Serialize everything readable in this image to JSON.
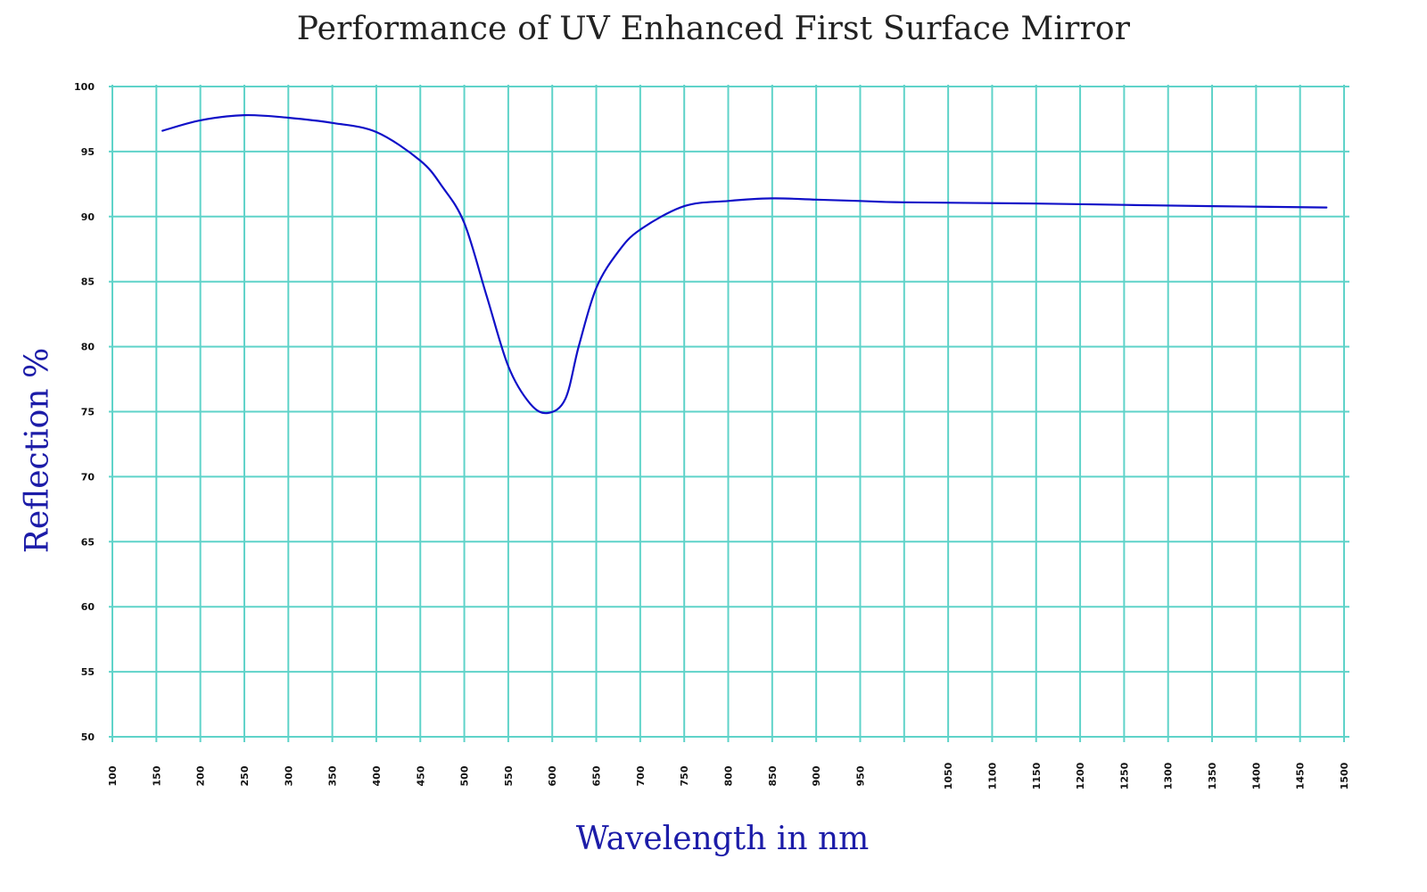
{
  "chart_data": {
    "type": "line",
    "title": "Performance of UV Enhanced First Surface Mirror",
    "xlabel": "Wavelength in nm",
    "ylabel": "Reflection %",
    "xlim": [
      100,
      1500
    ],
    "ylim": [
      50,
      100
    ],
    "grid": true,
    "legend": null,
    "x_tick_labels": [
      "100",
      "150",
      "200",
      "250",
      "300",
      "350",
      "400",
      "450",
      "500",
      "550",
      "600",
      "650",
      "700",
      "750",
      "800",
      "850",
      "900",
      "950",
      "1050",
      "1100",
      "1150",
      "1200",
      "1250",
      "1300",
      "1350",
      "1400",
      "1450",
      "1500"
    ],
    "y_tick_labels": [
      "100",
      "95",
      "90",
      "85",
      "80",
      "75",
      "70",
      "65",
      "60",
      "55",
      "50"
    ],
    "series": [
      {
        "name": "UV Enhanced First Surface Mirror",
        "color": "#1010c8",
        "x": [
          157,
          200,
          250,
          300,
          350,
          400,
          450,
          475,
          500,
          525,
          550,
          575,
          595,
          615,
          630,
          650,
          675,
          700,
          750,
          800,
          850,
          900,
          950,
          1000,
          1150,
          1250,
          1350,
          1480
        ],
        "y": [
          96.6,
          97.4,
          97.8,
          97.6,
          97.2,
          96.5,
          94.3,
          92.3,
          89.5,
          84.0,
          78.5,
          75.6,
          74.9,
          76.0,
          80.0,
          84.5,
          87.3,
          89.0,
          90.8,
          91.2,
          91.4,
          91.3,
          91.2,
          91.1,
          91.0,
          90.9,
          90.8,
          90.7
        ]
      }
    ]
  },
  "colors": {
    "grid": "#5fd3c9",
    "line": "#1010c8",
    "axis_label": "#1c1ca8",
    "title": "#222222"
  }
}
